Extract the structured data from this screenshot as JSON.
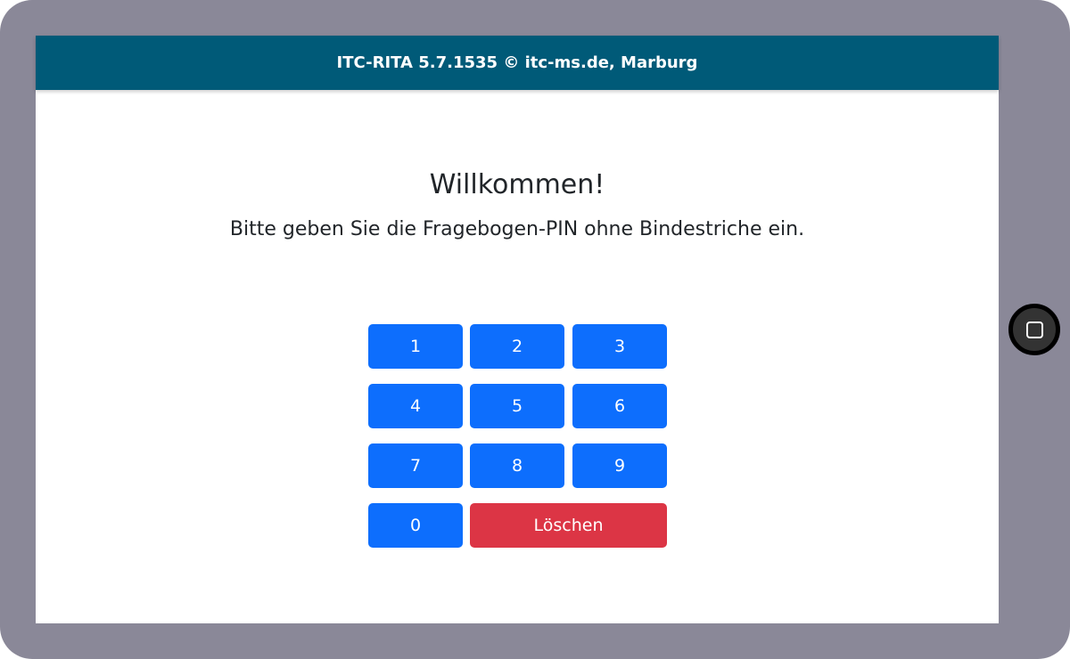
{
  "header": {
    "title": "ITC-RITA 5.7.1535 © itc-ms.de, Marburg"
  },
  "main": {
    "heading": "Willkommen!",
    "instruction": "Bitte geben Sie die Fragebogen-PIN ohne Bindestriche ein."
  },
  "keypad": {
    "keys": [
      "1",
      "2",
      "3",
      "4",
      "5",
      "6",
      "7",
      "8",
      "9",
      "0"
    ],
    "delete_label": "Löschen"
  },
  "colors": {
    "header": "#005a78",
    "key": "#0d6efd",
    "delete": "#dc3545",
    "frame": "#8a8898"
  },
  "device": {
    "home_button_icon": "square-icon"
  }
}
